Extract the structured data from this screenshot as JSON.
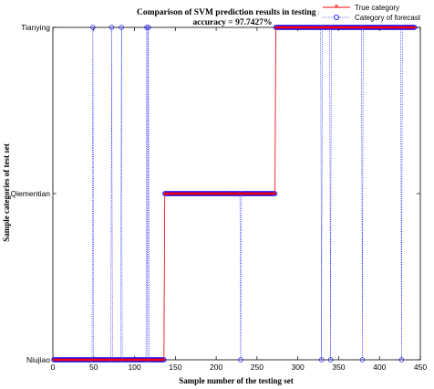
{
  "chart_data": {
    "type": "line",
    "title": "Comparison of SVM prediction results in testing set",
    "subtitle": "accuracy = 97.7427%",
    "xlabel": "Sample number of the testing set",
    "ylabel": "Sample categories of test set",
    "xlim": [
      0,
      450
    ],
    "x_ticks": [
      0,
      50,
      100,
      150,
      200,
      250,
      300,
      350,
      400,
      450
    ],
    "categories": [
      "Niujiao",
      "Qiementian",
      "Tianying"
    ],
    "grid": false,
    "legend_position": "top-right",
    "n_samples": 443,
    "series": [
      {
        "name": "True category",
        "color": "#ff0000",
        "marker": "asterisk",
        "segments": [
          {
            "x_start": 1,
            "x_end": 136,
            "category": "Niujiao"
          },
          {
            "x_start": 137,
            "x_end": 272,
            "category": "Qiementian"
          },
          {
            "x_start": 273,
            "x_end": 443,
            "category": "Tianying"
          }
        ]
      },
      {
        "name": "Category of forecast",
        "color": "#0000ff",
        "marker": "circle",
        "segments": [
          {
            "x_start": 1,
            "x_end": 136,
            "category": "Niujiao"
          },
          {
            "x_start": 137,
            "x_end": 272,
            "category": "Qiementian"
          },
          {
            "x_start": 273,
            "x_end": 443,
            "category": "Tianying"
          }
        ],
        "misclassified": [
          {
            "x": 49,
            "category": "Tianying"
          },
          {
            "x": 72,
            "category": "Tianying"
          },
          {
            "x": 84,
            "category": "Tianying"
          },
          {
            "x": 115,
            "category": "Tianying"
          },
          {
            "x": 117,
            "category": "Tianying"
          },
          {
            "x": 230,
            "category": "Niujiao"
          },
          {
            "x": 329,
            "category": "Niujiao"
          },
          {
            "x": 340,
            "category": "Niujiao"
          },
          {
            "x": 379,
            "category": "Niujiao"
          },
          {
            "x": 427,
            "category": "Niujiao"
          }
        ]
      }
    ]
  }
}
